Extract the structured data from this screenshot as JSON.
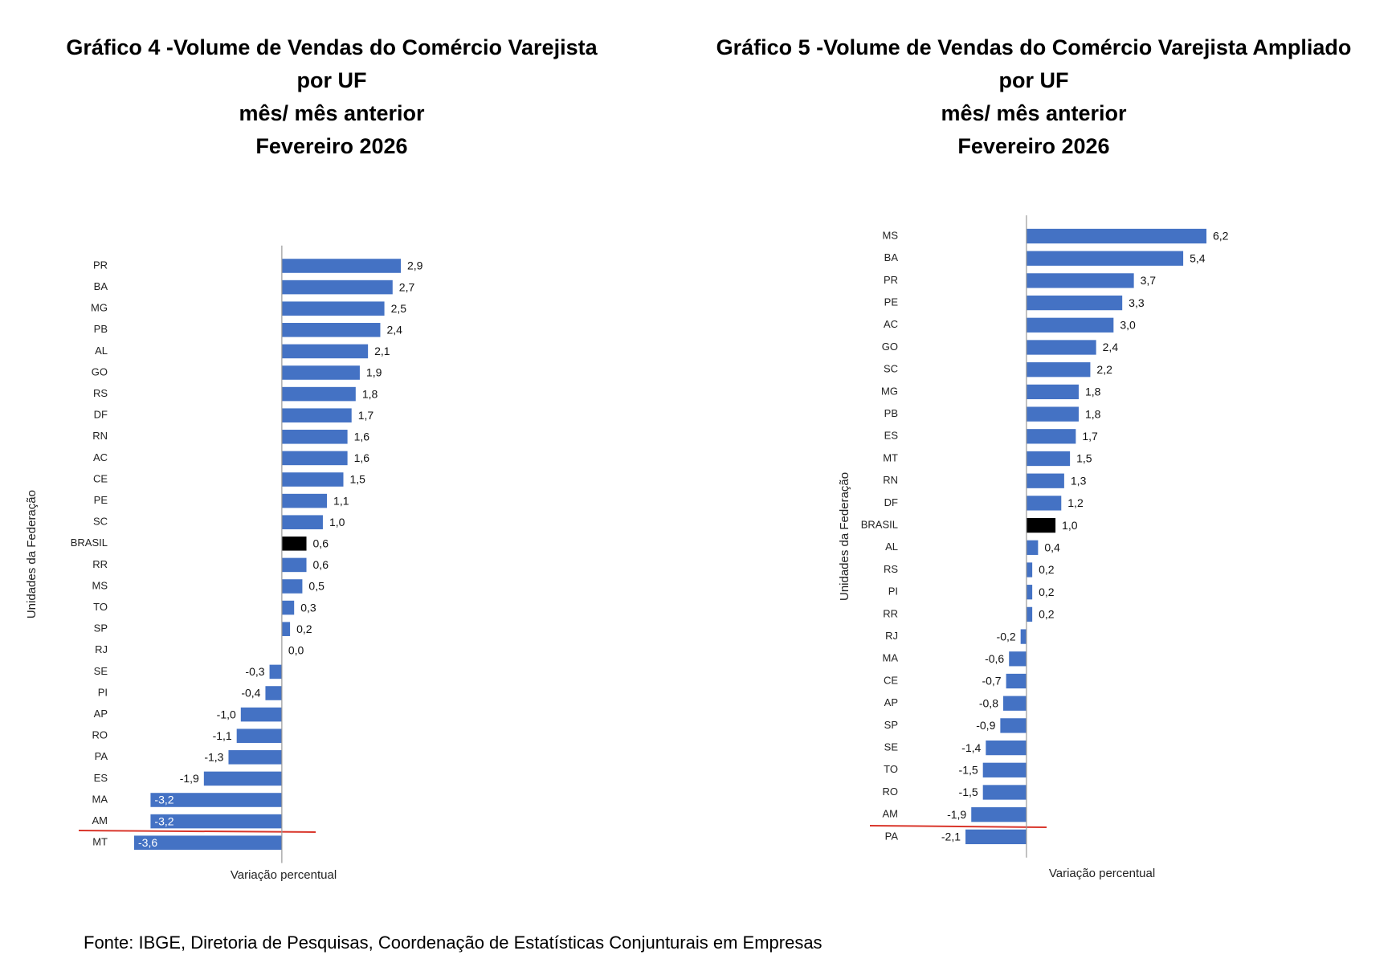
{
  "chart_data": [
    {
      "type": "barh",
      "title": [
        "Gráfico 4 -Volume de Vendas do Comércio Varejista",
        "por UF",
        "mês/ mês anterior",
        "Fevereiro 2026"
      ],
      "xlabel": "Variação percentual",
      "ylabel": "Unidades da Federação",
      "categories": [
        "PR",
        "BA",
        "MG",
        "PB",
        "AL",
        "GO",
        "RS",
        "DF",
        "RN",
        "AC",
        "CE",
        "PE",
        "SC",
        "BRASIL",
        "RR",
        "MS",
        "TO",
        "SP",
        "RJ",
        "SE",
        "PI",
        "AP",
        "RO",
        "PA",
        "ES",
        "MA",
        "AM",
        "MT"
      ],
      "values": [
        2.9,
        2.7,
        2.5,
        2.4,
        2.1,
        1.9,
        1.8,
        1.7,
        1.6,
        1.6,
        1.5,
        1.1,
        1.0,
        0.6,
        0.6,
        0.5,
        0.3,
        0.2,
        0.0,
        -0.3,
        -0.4,
        -1.0,
        -1.1,
        -1.3,
        -1.9,
        -3.2,
        -3.2,
        -3.6
      ],
      "value_labels": [
        "2,9",
        "2,7",
        "2,5",
        "2,4",
        "2,1",
        "1,9",
        "1,8",
        "1,7",
        "1,6",
        "1,6",
        "1,5",
        "1,1",
        "1,0",
        "0,6",
        "0,6",
        "0,5",
        "0,3",
        "0,2",
        "0,0",
        "-0,3",
        "-0,4",
        "-1,0",
        "-1,1",
        "-1,3",
        "-1,9",
        "-3,2",
        "-3,2",
        "-3,6"
      ],
      "colors": [
        "#4472c4",
        "#4472c4",
        "#4472c4",
        "#4472c4",
        "#4472c4",
        "#4472c4",
        "#4472c4",
        "#4472c4",
        "#4472c4",
        "#4472c4",
        "#4472c4",
        "#4472c4",
        "#4472c4",
        "#000000",
        "#4472c4",
        "#4472c4",
        "#4472c4",
        "#4472c4",
        "#4472c4",
        "#4472c4",
        "#4472c4",
        "#4472c4",
        "#4472c4",
        "#4472c4",
        "#4472c4",
        "#4472c4",
        "#4472c4",
        "#4472c4"
      ],
      "xlim": [
        -3.6,
        2.9
      ]
    },
    {
      "type": "barh",
      "title": [
        "Gráfico 5 -Volume de Vendas do Comércio Varejista Ampliado",
        "por UF",
        "mês/ mês anterior",
        "Fevereiro 2026"
      ],
      "xlabel": "Variação percentual",
      "ylabel": "Unidades da Federação",
      "categories": [
        "MS",
        "BA",
        "PR",
        "PE",
        "AC",
        "GO",
        "SC",
        "MG",
        "PB",
        "ES",
        "MT",
        "RN",
        "DF",
        "BRASIL",
        "AL",
        "RS",
        "PI",
        "RR",
        "RJ",
        "MA",
        "CE",
        "AP",
        "SP",
        "SE",
        "TO",
        "RO",
        "AM",
        "PA"
      ],
      "values": [
        6.2,
        5.4,
        3.7,
        3.3,
        3.0,
        2.4,
        2.2,
        1.8,
        1.8,
        1.7,
        1.5,
        1.3,
        1.2,
        1.0,
        0.4,
        0.2,
        0.2,
        0.2,
        -0.2,
        -0.6,
        -0.7,
        -0.8,
        -0.9,
        -1.4,
        -1.5,
        -1.5,
        -1.9,
        -2.1
      ],
      "value_labels": [
        "6,2",
        "5,4",
        "3,7",
        "3,3",
        "3,0",
        "2,4",
        "2,2",
        "1,8",
        "1,8",
        "1,7",
        "1,5",
        "1,3",
        "1,2",
        "1,0",
        "0,4",
        "0,2",
        "0,2",
        "0,2",
        "-0,2",
        "-0,6",
        "-0,7",
        "-0,8",
        "-0,9",
        "-1,4",
        "-1,5",
        "-1,5",
        "-1,9",
        "-2,1"
      ],
      "colors": [
        "#4472c4",
        "#4472c4",
        "#4472c4",
        "#4472c4",
        "#4472c4",
        "#4472c4",
        "#4472c4",
        "#4472c4",
        "#4472c4",
        "#4472c4",
        "#4472c4",
        "#4472c4",
        "#4472c4",
        "#000000",
        "#4472c4",
        "#4472c4",
        "#4472c4",
        "#4472c4",
        "#4472c4",
        "#4472c4",
        "#4472c4",
        "#4472c4",
        "#4472c4",
        "#4472c4",
        "#4472c4",
        "#4472c4",
        "#4472c4",
        "#4472c4"
      ],
      "xlim": [
        -2.1,
        6.2
      ]
    }
  ],
  "source": "Fonte: IBGE, Diretoria de Pesquisas, Coordenação de Estatísticas Conjunturais em Empresas"
}
